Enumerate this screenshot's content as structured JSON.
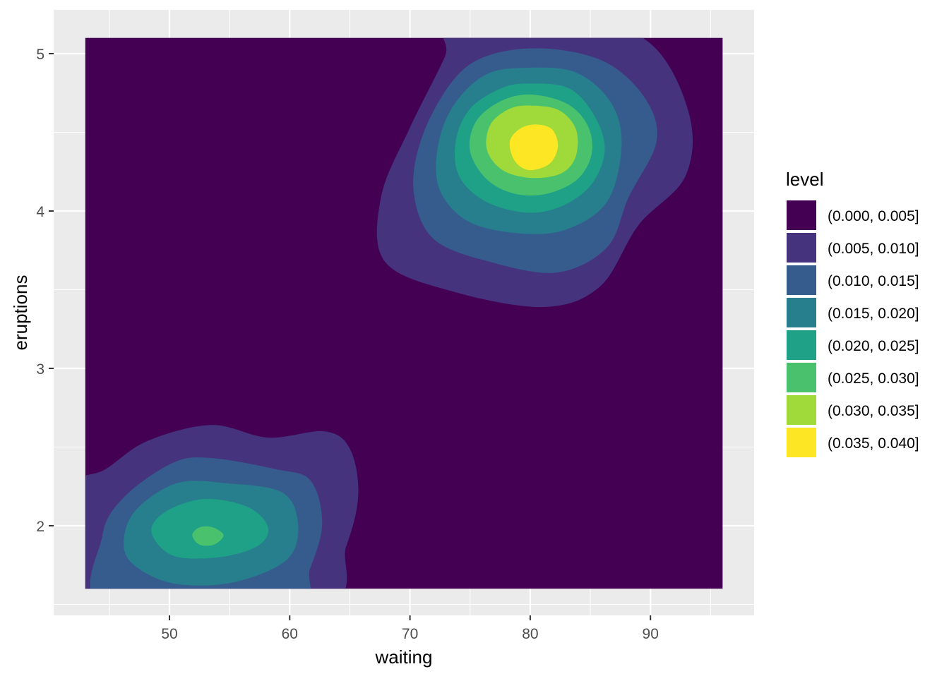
{
  "chart_data": {
    "type": "filled_contour",
    "title": "",
    "xlabel": "waiting",
    "ylabel": "eruptions",
    "xlim": [
      40.4,
      98.6
    ],
    "ylim": [
      1.43,
      5.28
    ],
    "data_extent": {
      "x": [
        43.0,
        96.0
      ],
      "y": [
        1.6,
        5.1
      ]
    },
    "x_ticks": [
      50,
      60,
      70,
      80,
      90
    ],
    "y_ticks": [
      2,
      3,
      4,
      5
    ],
    "x_minor": [
      45,
      55,
      65,
      75,
      85,
      95
    ],
    "y_minor": [
      1.5,
      2.5,
      3.5,
      4.5
    ],
    "grid": true,
    "legend": {
      "title": "level",
      "placement": "right",
      "entries": [
        {
          "label": "(0.000, 0.005]",
          "color": "#440154"
        },
        {
          "label": "(0.005, 0.010]",
          "color": "#46337E"
        },
        {
          "label": "(0.010, 0.015]",
          "color": "#365C8D"
        },
        {
          "label": "(0.015, 0.020]",
          "color": "#277F8E"
        },
        {
          "label": "(0.020, 0.025]",
          "color": "#1FA187"
        },
        {
          "label": "(0.025, 0.030]",
          "color": "#4AC16D"
        },
        {
          "label": "(0.030, 0.035]",
          "color": "#9FDA3A"
        },
        {
          "label": "(0.035, 0.040]",
          "color": "#FDE725"
        }
      ]
    },
    "contours": [
      {
        "level": 1,
        "points": [
          [
            73.5,
            5.16
          ],
          [
            82.9,
            5.25
          ],
          [
            89.9,
            5.07
          ],
          [
            93.2,
            4.62
          ],
          [
            92.9,
            4.22
          ],
          [
            89.0,
            3.91
          ],
          [
            85.8,
            3.52
          ],
          [
            81.1,
            3.39
          ],
          [
            73.5,
            3.49
          ],
          [
            67.9,
            3.68
          ],
          [
            67.6,
            4.09
          ],
          [
            70.0,
            4.53
          ],
          [
            72.9,
            4.98
          ]
        ]
      },
      {
        "level": 2,
        "points": [
          [
            77.0,
            5.0
          ],
          [
            81.7,
            5.03
          ],
          [
            86.4,
            4.94
          ],
          [
            89.6,
            4.71
          ],
          [
            90.5,
            4.44
          ],
          [
            88.2,
            4.09
          ],
          [
            86.4,
            3.77
          ],
          [
            82.3,
            3.61
          ],
          [
            77.0,
            3.67
          ],
          [
            72.0,
            3.82
          ],
          [
            70.3,
            4.13
          ],
          [
            71.1,
            4.49
          ],
          [
            73.8,
            4.85
          ]
        ]
      },
      {
        "level": 3,
        "points": [
          [
            79.7,
            4.91
          ],
          [
            83.8,
            4.88
          ],
          [
            86.7,
            4.69
          ],
          [
            87.6,
            4.42
          ],
          [
            86.4,
            4.06
          ],
          [
            82.9,
            3.88
          ],
          [
            78.8,
            3.86
          ],
          [
            74.7,
            3.94
          ],
          [
            72.4,
            4.15
          ],
          [
            72.4,
            4.44
          ],
          [
            73.8,
            4.69
          ],
          [
            76.4,
            4.87
          ]
        ]
      },
      {
        "level": 4,
        "points": [
          [
            79.9,
            4.81
          ],
          [
            83.2,
            4.78
          ],
          [
            85.3,
            4.61
          ],
          [
            86.2,
            4.39
          ],
          [
            85.1,
            4.17
          ],
          [
            82.6,
            4.03
          ],
          [
            79.7,
            3.99
          ],
          [
            76.3,
            4.06
          ],
          [
            74.1,
            4.22
          ],
          [
            73.8,
            4.44
          ],
          [
            75.0,
            4.65
          ],
          [
            77.6,
            4.78
          ]
        ]
      },
      {
        "level": 5,
        "points": [
          [
            80.1,
            4.74
          ],
          [
            83.1,
            4.68
          ],
          [
            84.8,
            4.54
          ],
          [
            85.1,
            4.36
          ],
          [
            83.9,
            4.2
          ],
          [
            81.4,
            4.11
          ],
          [
            78.7,
            4.11
          ],
          [
            76.4,
            4.2
          ],
          [
            75.0,
            4.38
          ],
          [
            75.5,
            4.57
          ],
          [
            77.6,
            4.7
          ]
        ]
      },
      {
        "level": 6,
        "points": [
          [
            80.1,
            4.67
          ],
          [
            82.4,
            4.64
          ],
          [
            83.8,
            4.52
          ],
          [
            83.8,
            4.35
          ],
          [
            82.6,
            4.24
          ],
          [
            80.1,
            4.21
          ],
          [
            77.7,
            4.26
          ],
          [
            76.4,
            4.39
          ],
          [
            76.7,
            4.55
          ],
          [
            78.3,
            4.65
          ]
        ]
      },
      {
        "level": 7,
        "points": [
          [
            80.4,
            4.55
          ],
          [
            81.8,
            4.52
          ],
          [
            82.3,
            4.41
          ],
          [
            81.6,
            4.3
          ],
          [
            79.9,
            4.26
          ],
          [
            78.7,
            4.32
          ],
          [
            78.3,
            4.44
          ],
          [
            79.1,
            4.52
          ]
        ]
      },
      {
        "level": 1,
        "points": [
          [
            41.2,
            1.48
          ],
          [
            41.2,
            2.2
          ],
          [
            44.7,
            2.36
          ],
          [
            48.2,
            2.54
          ],
          [
            53.5,
            2.64
          ],
          [
            58.2,
            2.56
          ],
          [
            62.9,
            2.6
          ],
          [
            65.0,
            2.49
          ],
          [
            65.7,
            2.2
          ],
          [
            64.7,
            1.87
          ],
          [
            62.3,
            1.48
          ]
        ]
      },
      {
        "level": 2,
        "points": [
          [
            44.7,
            1.48
          ],
          [
            44.4,
            1.93
          ],
          [
            46.2,
            2.18
          ],
          [
            50.3,
            2.4
          ],
          [
            53.5,
            2.43
          ],
          [
            58.8,
            2.36
          ],
          [
            61.7,
            2.29
          ],
          [
            62.7,
            2.02
          ],
          [
            61.7,
            1.73
          ],
          [
            60.0,
            1.48
          ]
        ]
      },
      {
        "level": 3,
        "points": [
          [
            46.2,
            1.87
          ],
          [
            47.1,
            2.09
          ],
          [
            50.6,
            2.27
          ],
          [
            54.7,
            2.27
          ],
          [
            59.4,
            2.21
          ],
          [
            60.7,
            2.0
          ],
          [
            59.7,
            1.78
          ],
          [
            55.3,
            1.64
          ],
          [
            50.6,
            1.63
          ],
          [
            47.4,
            1.73
          ]
        ]
      },
      {
        "level": 4,
        "points": [
          [
            48.5,
            1.96
          ],
          [
            49.7,
            2.09
          ],
          [
            52.9,
            2.17
          ],
          [
            56.5,
            2.12
          ],
          [
            58.2,
            1.99
          ],
          [
            57.3,
            1.87
          ],
          [
            54.1,
            1.8
          ],
          [
            50.3,
            1.81
          ]
        ]
      },
      {
        "level": 5,
        "points": [
          [
            51.9,
            1.94
          ],
          [
            52.5,
            1.99
          ],
          [
            53.6,
            1.99
          ],
          [
            54.5,
            1.94
          ],
          [
            53.7,
            1.88
          ],
          [
            52.5,
            1.88
          ]
        ]
      }
    ]
  }
}
